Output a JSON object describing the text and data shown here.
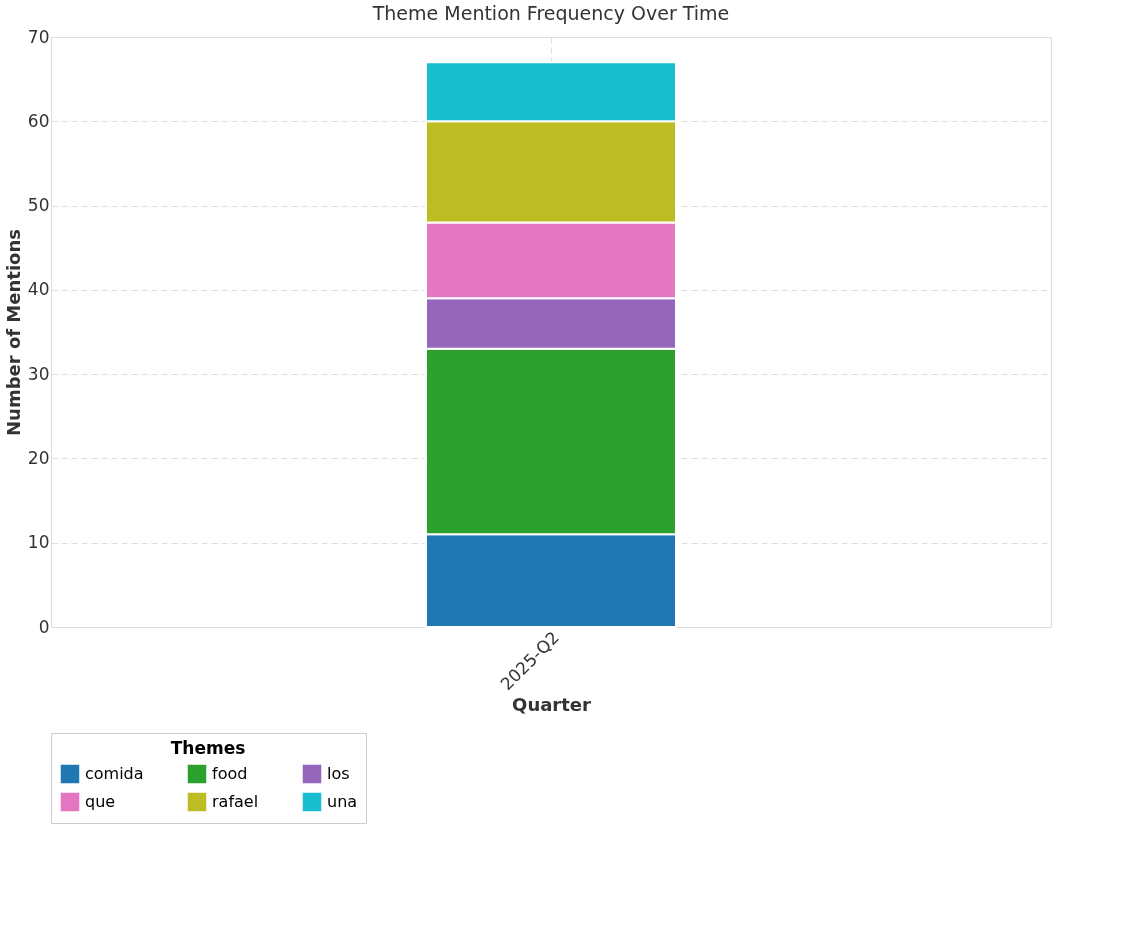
{
  "chart_data": {
    "type": "bar",
    "title": "Theme Mention Frequency Over Time",
    "xlabel": "Quarter",
    "ylabel": "Number of Mentions",
    "legend_title": "Themes",
    "categories": [
      "2025-Q2"
    ],
    "stacked": true,
    "series": [
      {
        "name": "comida",
        "color": "#1f77b4",
        "values": [
          11
        ]
      },
      {
        "name": "food",
        "color": "#2ca02c",
        "values": [
          22
        ]
      },
      {
        "name": "los",
        "color": "#9467bd",
        "values": [
          6
        ]
      },
      {
        "name": "que",
        "color": "#e377c2",
        "values": [
          9
        ]
      },
      {
        "name": "rafael",
        "color": "#bcbd22",
        "values": [
          12
        ]
      },
      {
        "name": "una",
        "color": "#17becf",
        "values": [
          7
        ]
      }
    ],
    "ylim": [
      0,
      70
    ],
    "yticks": [
      0,
      10,
      20,
      30,
      40,
      50,
      60,
      70
    ],
    "grid": true,
    "legend": "bottom"
  }
}
